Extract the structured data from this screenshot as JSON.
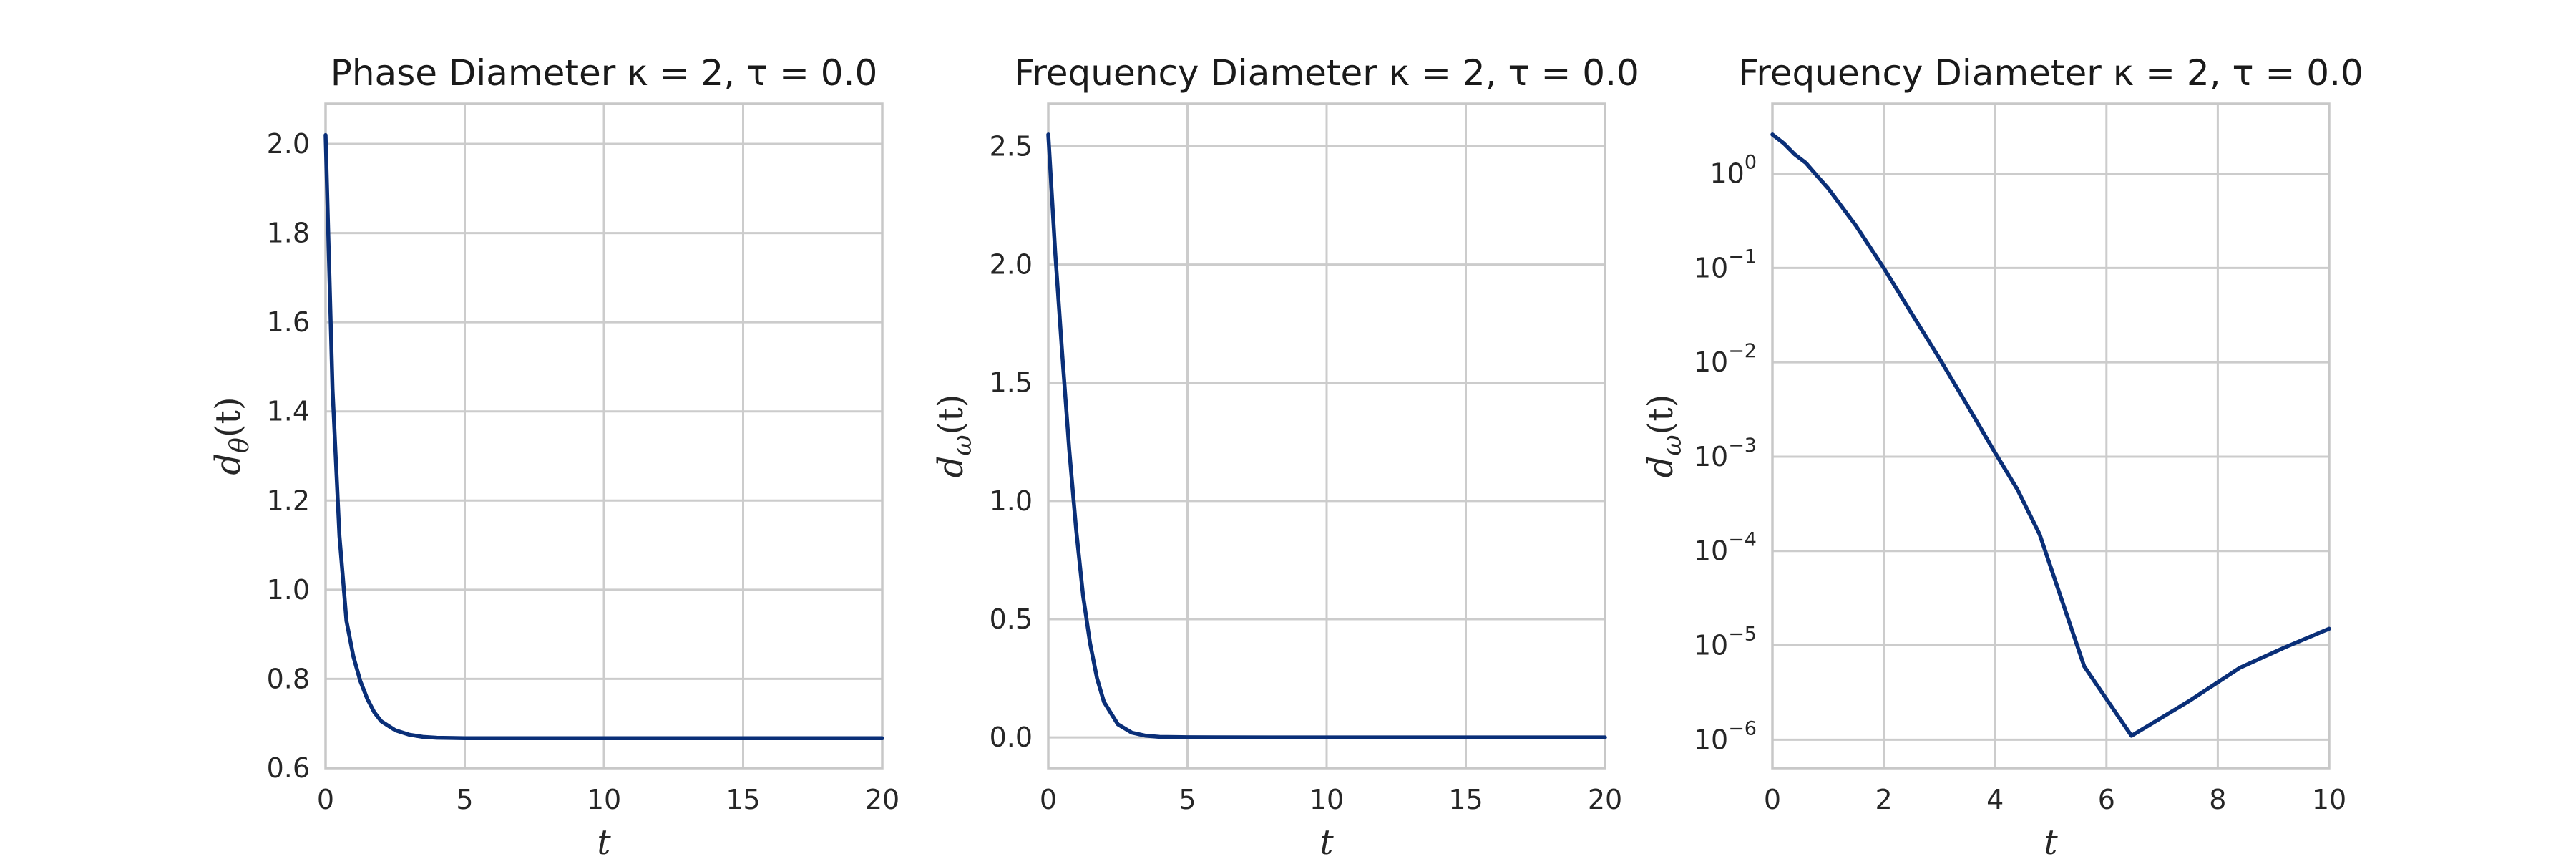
{
  "chart_data": [
    {
      "type": "line",
      "title": "Phase Diameter κ = 2, τ = 0.0",
      "xlabel": "t",
      "ylabel": {
        "base": "d",
        "sub": "θ",
        "rest": "(t)"
      },
      "xlim": [
        0,
        20
      ],
      "ylim": [
        0.6,
        2.09
      ],
      "yscale": "linear",
      "grid": true,
      "xticks": [
        0,
        5,
        10,
        15,
        20
      ],
      "xticklabels": [
        "0",
        "5",
        "10",
        "15",
        "20"
      ],
      "yticks": [
        0.6,
        0.8,
        1.0,
        1.2,
        1.4,
        1.6,
        1.8,
        2.0
      ],
      "yticklabels": [
        "0.6",
        "0.8",
        "1.0",
        "1.2",
        "1.4",
        "1.6",
        "1.8",
        "2.0"
      ],
      "series": [
        {
          "color": "#0a2f78",
          "x": [
            0,
            0.25,
            0.5,
            0.75,
            1.0,
            1.25,
            1.5,
            1.75,
            2.0,
            2.5,
            3.0,
            3.5,
            4.0,
            5.0,
            6.0,
            8.0,
            10.0,
            12.5,
            15.0,
            17.5,
            20.0
          ],
          "y": [
            2.02,
            1.45,
            1.12,
            0.93,
            0.85,
            0.795,
            0.755,
            0.725,
            0.705,
            0.685,
            0.675,
            0.67,
            0.668,
            0.667,
            0.667,
            0.667,
            0.667,
            0.667,
            0.667,
            0.667,
            0.667
          ]
        }
      ]
    },
    {
      "type": "line",
      "title": "Frequency Diameter κ = 2, τ = 0.0",
      "xlabel": "t",
      "ylabel": {
        "base": "d",
        "sub": "ω",
        "rest": "(t)"
      },
      "xlim": [
        0,
        20
      ],
      "ylim": [
        -0.13,
        2.68
      ],
      "yscale": "linear",
      "grid": true,
      "xticks": [
        0,
        5,
        10,
        15,
        20
      ],
      "xticklabels": [
        "0",
        "5",
        "10",
        "15",
        "20"
      ],
      "yticks": [
        0.0,
        0.5,
        1.0,
        1.5,
        2.0,
        2.5
      ],
      "yticklabels": [
        "0.0",
        "0.5",
        "1.0",
        "1.5",
        "2.0",
        "2.5"
      ],
      "series": [
        {
          "color": "#0a2f78",
          "x": [
            0,
            0.25,
            0.5,
            0.75,
            1.0,
            1.25,
            1.5,
            1.75,
            2.0,
            2.5,
            3.0,
            3.5,
            4.0,
            5.0,
            6.0,
            8.0,
            10.0,
            12.5,
            15.0,
            17.5,
            20.0
          ],
          "y": [
            2.55,
            2.05,
            1.62,
            1.22,
            0.88,
            0.6,
            0.4,
            0.25,
            0.15,
            0.055,
            0.02,
            0.007,
            0.002,
            0.0005,
            0.0001,
            0.0,
            0.0,
            0.0,
            0.0,
            0.0,
            0.0
          ]
        }
      ]
    },
    {
      "type": "line",
      "title": "Frequency Diameter κ = 2, τ = 0.0",
      "xlabel": "t",
      "ylabel": {
        "base": "d",
        "sub": "ω",
        "rest": "(t)"
      },
      "xlim": [
        0,
        10
      ],
      "ylim": [
        5e-07,
        5.5
      ],
      "yscale": "log",
      "grid": true,
      "xticks": [
        0,
        2,
        4,
        6,
        8,
        10
      ],
      "xticklabels": [
        "0",
        "2",
        "4",
        "6",
        "8",
        "10"
      ],
      "yticks": [
        1e-06,
        1e-05,
        0.0001,
        0.001,
        0.01,
        0.1,
        1
      ],
      "yticklabels": [
        {
          "base": "10",
          "exp": "−6"
        },
        {
          "base": "10",
          "exp": "−5"
        },
        {
          "base": "10",
          "exp": "−4"
        },
        {
          "base": "10",
          "exp": "−3"
        },
        {
          "base": "10",
          "exp": "−2"
        },
        {
          "base": "10",
          "exp": "−1"
        },
        {
          "base": "10",
          "exp": "0"
        }
      ],
      "series": [
        {
          "color": "#0a2f78",
          "x": [
            0,
            0.2,
            0.4,
            0.6,
            0.8,
            1.0,
            1.5,
            2.0,
            2.5,
            3.0,
            3.5,
            4.0,
            4.4,
            4.8,
            5.6,
            6.45,
            7.5,
            8.4,
            9.2,
            10.0
          ],
          "y": [
            2.6,
            2.1,
            1.6,
            1.3,
            0.95,
            0.7,
            0.28,
            0.1,
            0.033,
            0.011,
            0.0035,
            0.0011,
            0.00045,
            0.00015,
            6e-06,
            1.1e-06,
            2.6e-06,
            5.8e-06,
            9.5e-06,
            1.5e-05
          ]
        }
      ]
    }
  ]
}
